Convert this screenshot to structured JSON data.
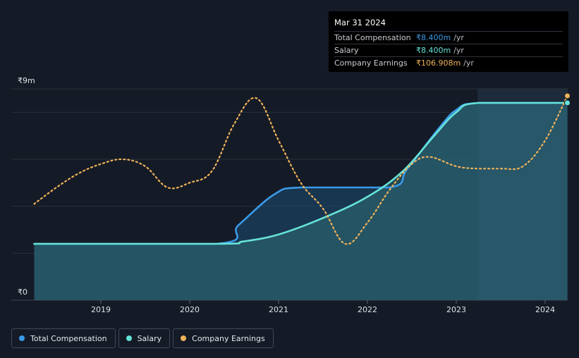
{
  "tooltip": {
    "date": "Mar 31 2024",
    "rows": [
      {
        "label": "Total Compensation",
        "value": "₹8.400m",
        "unit": "/yr",
        "color": "#3a9ae8"
      },
      {
        "label": "Salary",
        "value": "₹8.400m",
        "unit": "/yr",
        "color": "#66e3d8"
      },
      {
        "label": "Company Earnings",
        "value": "₹106.908m",
        "unit": "/yr",
        "color": "#f0b25a"
      }
    ]
  },
  "legend": [
    {
      "label": "Total Compensation",
      "color": "#3a9ae8"
    },
    {
      "label": "Salary",
      "color": "#66e3d8"
    },
    {
      "label": "Company Earnings",
      "color": "#f0b25a"
    }
  ],
  "chart_data": {
    "type": "line",
    "title": "",
    "xlabel": "",
    "ylabel": "",
    "y_top_label": "₹9m",
    "y_bottom_label": "₹0",
    "ylim": [
      0,
      9
    ],
    "xlim": [
      2018.25,
      2024.25
    ],
    "x_ticks": [
      2019,
      2020,
      2021,
      2022,
      2023,
      2024
    ],
    "x_tick_labels": [
      "2019",
      "2020",
      "2021",
      "2022",
      "2023",
      "2024"
    ],
    "highlight_range": [
      2023.24,
      2024.25
    ],
    "series": [
      {
        "name": "Total Compensation",
        "color": "#3a9ae8",
        "unit": "₹m",
        "points": [
          [
            2018.25,
            2.4
          ],
          [
            2020.3,
            2.4
          ],
          [
            2020.55,
            3.2
          ],
          [
            2020.95,
            4.5
          ],
          [
            2021.25,
            4.8
          ],
          [
            2022.25,
            4.8
          ],
          [
            2022.45,
            5.6
          ],
          [
            2022.8,
            7.3
          ],
          [
            2023.0,
            8.1
          ],
          [
            2023.25,
            8.4
          ],
          [
            2024.25,
            8.4
          ]
        ]
      },
      {
        "name": "Salary",
        "color": "#66e3d8",
        "unit": "₹m",
        "points": [
          [
            2018.25,
            2.4
          ],
          [
            2020.3,
            2.4
          ],
          [
            2020.6,
            2.5
          ],
          [
            2021.0,
            2.8
          ],
          [
            2021.5,
            3.5
          ],
          [
            2022.0,
            4.4
          ],
          [
            2022.4,
            5.5
          ],
          [
            2022.75,
            7.0
          ],
          [
            2023.0,
            8.0
          ],
          [
            2023.25,
            8.4
          ],
          [
            2024.25,
            8.4
          ]
        ]
      },
      {
        "name": "Company Earnings",
        "color": "#f0b25a",
        "unit": "₹m (scaled to axis)",
        "points": [
          [
            2018.25,
            4.1
          ],
          [
            2018.5,
            4.8
          ],
          [
            2018.75,
            5.4
          ],
          [
            2019.0,
            5.8
          ],
          [
            2019.25,
            6.0
          ],
          [
            2019.5,
            5.7
          ],
          [
            2019.75,
            4.8
          ],
          [
            2020.0,
            5.0
          ],
          [
            2020.25,
            5.5
          ],
          [
            2020.5,
            7.5
          ],
          [
            2020.75,
            8.6
          ],
          [
            2021.0,
            6.8
          ],
          [
            2021.25,
            5.0
          ],
          [
            2021.5,
            3.9
          ],
          [
            2021.75,
            2.4
          ],
          [
            2022.0,
            3.3
          ],
          [
            2022.25,
            4.7
          ],
          [
            2022.5,
            5.8
          ],
          [
            2022.7,
            6.1
          ],
          [
            2023.0,
            5.7
          ],
          [
            2023.25,
            5.6
          ],
          [
            2023.5,
            5.6
          ],
          [
            2023.75,
            5.7
          ],
          [
            2024.0,
            6.8
          ],
          [
            2024.25,
            8.7
          ]
        ]
      }
    ]
  }
}
